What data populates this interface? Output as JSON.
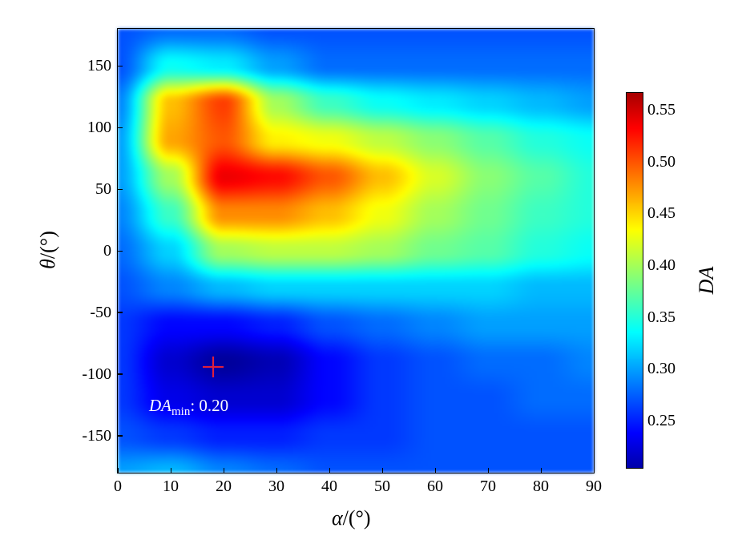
{
  "chart_data": {
    "type": "heatmap",
    "xlabel_symbol": "α",
    "xlabel_unit": "/(°)",
    "ylabel_symbol": "θ",
    "ylabel_unit": "/(°)",
    "colorbar_label": "DA",
    "xlim": [
      0,
      90
    ],
    "ylim": [
      -180,
      180
    ],
    "xticks": [
      0,
      10,
      20,
      30,
      40,
      50,
      60,
      70,
      80,
      90
    ],
    "yticks": [
      150,
      100,
      50,
      0,
      -50,
      -100,
      -150
    ],
    "yticklabels": [
      "150",
      "100",
      "50",
      "0",
      "-50",
      "-100",
      "-150"
    ],
    "colorbar_ticks": [
      "0.55",
      "0.50",
      "0.45",
      "0.40",
      "0.35",
      "0.30",
      "0.25"
    ],
    "colorbar_range": [
      0.205,
      0.567
    ],
    "colormap": "jet",
    "grid_x": [
      0,
      10,
      20,
      30,
      40,
      50,
      60,
      70,
      80,
      90
    ],
    "grid_y": [
      180,
      150,
      120,
      90,
      60,
      30,
      0,
      -30,
      -60,
      -90,
      -120,
      -150,
      -180
    ],
    "z": [
      [
        0.27,
        0.28,
        0.28,
        0.27,
        0.27,
        0.27,
        0.27,
        0.27,
        0.27,
        0.27
      ],
      [
        0.27,
        0.34,
        0.33,
        0.3,
        0.28,
        0.28,
        0.28,
        0.28,
        0.28,
        0.28
      ],
      [
        0.29,
        0.46,
        0.51,
        0.4,
        0.36,
        0.34,
        0.33,
        0.32,
        0.31,
        0.3
      ],
      [
        0.3,
        0.47,
        0.5,
        0.44,
        0.43,
        0.41,
        0.39,
        0.37,
        0.35,
        0.34
      ],
      [
        0.3,
        0.4,
        0.54,
        0.53,
        0.5,
        0.46,
        0.42,
        0.39,
        0.37,
        0.35
      ],
      [
        0.29,
        0.36,
        0.48,
        0.48,
        0.46,
        0.43,
        0.4,
        0.38,
        0.36,
        0.35
      ],
      [
        0.28,
        0.32,
        0.4,
        0.41,
        0.41,
        0.4,
        0.38,
        0.37,
        0.35,
        0.34
      ],
      [
        0.27,
        0.29,
        0.31,
        0.32,
        0.32,
        0.32,
        0.32,
        0.32,
        0.31,
        0.31
      ],
      [
        0.26,
        0.24,
        0.24,
        0.25,
        0.27,
        0.28,
        0.29,
        0.3,
        0.3,
        0.3
      ],
      [
        0.26,
        0.22,
        0.2,
        0.21,
        0.24,
        0.26,
        0.27,
        0.28,
        0.28,
        0.29
      ],
      [
        0.26,
        0.23,
        0.22,
        0.22,
        0.24,
        0.26,
        0.27,
        0.27,
        0.28,
        0.28
      ],
      [
        0.27,
        0.26,
        0.25,
        0.25,
        0.26,
        0.26,
        0.27,
        0.27,
        0.27,
        0.27
      ],
      [
        0.3,
        0.31,
        0.29,
        0.28,
        0.27,
        0.27,
        0.27,
        0.27,
        0.27,
        0.27
      ]
    ],
    "minimum": {
      "alpha": 18,
      "theta": -94,
      "label_main": "DA",
      "label_sub": "min",
      "label_value": ": 0.20",
      "marker_color": "#e0203a"
    }
  }
}
